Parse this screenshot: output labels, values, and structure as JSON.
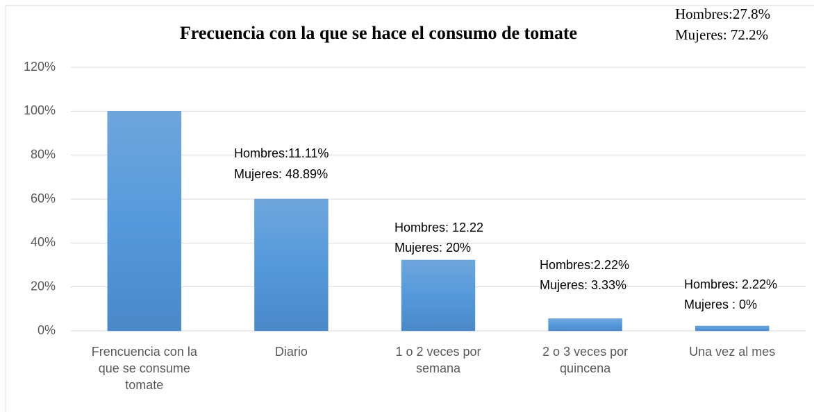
{
  "chart_data": {
    "type": "bar",
    "title": "Frecuencia con la que se hace el consumo de tomate",
    "categories": [
      "Frencuencia con la que se consume tomate",
      "Diario",
      "1 o 2 veces por semana",
      "2 o 3 veces por quincena",
      "Una vez al mes"
    ],
    "values": [
      100,
      60,
      32.22,
      5.55,
      2.22
    ],
    "color": "#5b9bd5",
    "ylim": [
      0,
      120
    ],
    "yticks": [
      {
        "value": 0,
        "label": "0%"
      },
      {
        "value": 20,
        "label": "20%"
      },
      {
        "value": 40,
        "label": "40%"
      },
      {
        "value": 60,
        "label": "60%"
      },
      {
        "value": 80,
        "label": "80%"
      },
      {
        "value": 100,
        "label": "100%"
      },
      {
        "value": 120,
        "label": "120%"
      }
    ],
    "grid": true,
    "annotations": [
      [
        "Hombres:27.8%",
        "Mujeres: 72.2%"
      ],
      [
        "Hombres:11.11%",
        "Mujeres: 48.89%"
      ],
      [
        "Hombres: 12.22",
        "Mujeres: 20%"
      ],
      [
        "Hombres:2.22%",
        "Mujeres: 3.33%"
      ],
      [
        "Hombres: 2.22%",
        "Mujeres : 0%"
      ]
    ]
  }
}
